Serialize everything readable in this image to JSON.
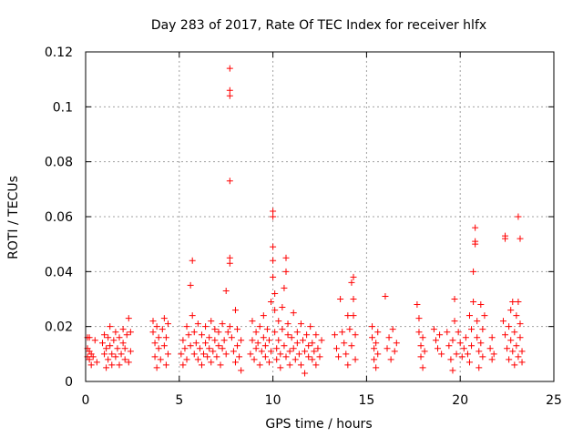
{
  "chart_data": {
    "type": "scatter",
    "title": "Day 283 of 2017, Rate Of TEC Index for receiver hlfx",
    "xlabel": "GPS time / hours",
    "ylabel": "ROTI / TECUs",
    "xlim": [
      0,
      25
    ],
    "ylim": [
      0,
      0.12
    ],
    "xticks": [
      0,
      5,
      10,
      15,
      20,
      25
    ],
    "yticks": [
      0,
      0.02,
      0.04,
      0.06,
      0.08,
      0.1,
      0.12
    ],
    "xtick_labels": [
      "0",
      "5",
      "10",
      "15",
      "20",
      "25"
    ],
    "ytick_labels": [
      "0",
      "0.02",
      "0.04",
      "0.06",
      "0.08",
      "0.1",
      "0.12"
    ],
    "grid": true,
    "marker": "+",
    "color": "#ff0000",
    "series": [
      {
        "points": [
          [
            0.1,
            0.016
          ],
          [
            0.1,
            0.012
          ],
          [
            0.1,
            0.009
          ],
          [
            0.2,
            0.008
          ],
          [
            0.2,
            0.011
          ],
          [
            0.2,
            0.016
          ],
          [
            0.3,
            0.006
          ],
          [
            0.3,
            0.01
          ],
          [
            0.4,
            0.009
          ],
          [
            0.5,
            0.015
          ],
          [
            0.6,
            0.007
          ],
          [
            0.9,
            0.014
          ],
          [
            1.0,
            0.017
          ],
          [
            1.0,
            0.01
          ],
          [
            1.1,
            0.005
          ],
          [
            1.1,
            0.012
          ],
          [
            1.2,
            0.016
          ],
          [
            1.2,
            0.008
          ],
          [
            1.3,
            0.013
          ],
          [
            1.3,
            0.02
          ],
          [
            1.4,
            0.01
          ],
          [
            1.4,
            0.006
          ],
          [
            1.5,
            0.015
          ],
          [
            1.6,
            0.009
          ],
          [
            1.6,
            0.018
          ],
          [
            1.7,
            0.012
          ],
          [
            1.8,
            0.006
          ],
          [
            1.8,
            0.016
          ],
          [
            1.9,
            0.01
          ],
          [
            2.0,
            0.014
          ],
          [
            2.0,
            0.019
          ],
          [
            2.1,
            0.008
          ],
          [
            2.1,
            0.012
          ],
          [
            2.2,
            0.017
          ],
          [
            2.3,
            0.007
          ],
          [
            2.3,
            0.023
          ],
          [
            2.4,
            0.011
          ],
          [
            2.4,
            0.018
          ],
          [
            3.6,
            0.022
          ],
          [
            3.6,
            0.018
          ],
          [
            3.7,
            0.014
          ],
          [
            3.7,
            0.009
          ],
          [
            3.8,
            0.005
          ],
          [
            3.8,
            0.02
          ],
          [
            3.9,
            0.012
          ],
          [
            3.9,
            0.016
          ],
          [
            4.0,
            0.008
          ],
          [
            4.1,
            0.019
          ],
          [
            4.2,
            0.023
          ],
          [
            4.2,
            0.013
          ],
          [
            4.3,
            0.006
          ],
          [
            4.3,
            0.016
          ],
          [
            4.4,
            0.01
          ],
          [
            4.4,
            0.021
          ],
          [
            5.1,
            0.01
          ],
          [
            5.2,
            0.015
          ],
          [
            5.2,
            0.006
          ],
          [
            5.3,
            0.012
          ],
          [
            5.4,
            0.02
          ],
          [
            5.4,
            0.008
          ],
          [
            5.5,
            0.017
          ],
          [
            5.6,
            0.013
          ],
          [
            5.6,
            0.035
          ],
          [
            5.7,
            0.044
          ],
          [
            5.7,
            0.024
          ],
          [
            5.8,
            0.01
          ],
          [
            5.8,
            0.018
          ],
          [
            5.9,
            0.014
          ],
          [
            6.0,
            0.008
          ],
          [
            6.0,
            0.021
          ],
          [
            6.1,
            0.012
          ],
          [
            6.2,
            0.017
          ],
          [
            6.2,
            0.006
          ],
          [
            6.3,
            0.01
          ],
          [
            6.4,
            0.02
          ],
          [
            6.4,
            0.014
          ],
          [
            6.5,
            0.009
          ],
          [
            6.6,
            0.016
          ],
          [
            6.6,
            0.012
          ],
          [
            6.7,
            0.007
          ],
          [
            6.7,
            0.022
          ],
          [
            6.8,
            0.011
          ],
          [
            6.9,
            0.015
          ],
          [
            6.9,
            0.019
          ],
          [
            7.0,
            0.009
          ],
          [
            7.1,
            0.013
          ],
          [
            7.1,
            0.018
          ],
          [
            7.2,
            0.006
          ],
          [
            7.3,
            0.012
          ],
          [
            7.3,
            0.021
          ],
          [
            7.4,
            0.015
          ],
          [
            7.5,
            0.01
          ],
          [
            7.5,
            0.033
          ],
          [
            7.6,
            0.018
          ],
          [
            7.7,
            0.114
          ],
          [
            7.7,
            0.106
          ],
          [
            7.7,
            0.104
          ],
          [
            7.7,
            0.073
          ],
          [
            7.7,
            0.045
          ],
          [
            7.7,
            0.043
          ],
          [
            7.7,
            0.02
          ],
          [
            7.8,
            0.016
          ],
          [
            7.9,
            0.011
          ],
          [
            8.0,
            0.026
          ],
          [
            8.0,
            0.007
          ],
          [
            8.1,
            0.013
          ],
          [
            8.1,
            0.019
          ],
          [
            8.2,
            0.009
          ],
          [
            8.3,
            0.015
          ],
          [
            8.3,
            0.004
          ],
          [
            8.8,
            0.01
          ],
          [
            8.9,
            0.015
          ],
          [
            8.9,
            0.022
          ],
          [
            9.0,
            0.008
          ],
          [
            9.1,
            0.012
          ],
          [
            9.1,
            0.018
          ],
          [
            9.2,
            0.014
          ],
          [
            9.3,
            0.006
          ],
          [
            9.3,
            0.02
          ],
          [
            9.4,
            0.011
          ],
          [
            9.5,
            0.016
          ],
          [
            9.5,
            0.024
          ],
          [
            9.6,
            0.009
          ],
          [
            9.6,
            0.013
          ],
          [
            9.7,
            0.019
          ],
          [
            9.8,
            0.007
          ],
          [
            9.8,
            0.015
          ],
          [
            9.9,
            0.011
          ],
          [
            9.9,
            0.029
          ],
          [
            10.0,
            0.062
          ],
          [
            10.0,
            0.06
          ],
          [
            10.0,
            0.049
          ],
          [
            10.0,
            0.044
          ],
          [
            10.0,
            0.038
          ],
          [
            10.1,
            0.032
          ],
          [
            10.1,
            0.026
          ],
          [
            10.1,
            0.018
          ],
          [
            10.2,
            0.012
          ],
          [
            10.2,
            0.008
          ],
          [
            10.3,
            0.022
          ],
          [
            10.3,
            0.015
          ],
          [
            10.4,
            0.01
          ],
          [
            10.4,
            0.005
          ],
          [
            10.5,
            0.019
          ],
          [
            10.5,
            0.027
          ],
          [
            10.6,
            0.013
          ],
          [
            10.6,
            0.034
          ],
          [
            10.7,
            0.009
          ],
          [
            10.7,
            0.045
          ],
          [
            10.7,
            0.04
          ],
          [
            10.8,
            0.017
          ],
          [
            10.8,
            0.021
          ],
          [
            10.9,
            0.011
          ],
          [
            10.9,
            0.006
          ],
          [
            11.0,
            0.016
          ],
          [
            11.1,
            0.025
          ],
          [
            11.1,
            0.012
          ],
          [
            11.2,
            0.008
          ],
          [
            11.3,
            0.018
          ],
          [
            11.3,
            0.014
          ],
          [
            11.4,
            0.01
          ],
          [
            11.5,
            0.021
          ],
          [
            11.5,
            0.006
          ],
          [
            11.6,
            0.015
          ],
          [
            11.7,
            0.011
          ],
          [
            11.7,
            0.003
          ],
          [
            11.8,
            0.017
          ],
          [
            11.9,
            0.009
          ],
          [
            11.9,
            0.013
          ],
          [
            12.0,
            0.02
          ],
          [
            12.1,
            0.008
          ],
          [
            12.1,
            0.014
          ],
          [
            12.2,
            0.011
          ],
          [
            12.3,
            0.017
          ],
          [
            12.3,
            0.006
          ],
          [
            12.4,
            0.012
          ],
          [
            12.5,
            0.009
          ],
          [
            12.6,
            0.015
          ],
          [
            13.3,
            0.017
          ],
          [
            13.4,
            0.012
          ],
          [
            13.5,
            0.009
          ],
          [
            13.6,
            0.03
          ],
          [
            13.7,
            0.018
          ],
          [
            13.8,
            0.014
          ],
          [
            13.9,
            0.01
          ],
          [
            14.0,
            0.006
          ],
          [
            14.0,
            0.024
          ],
          [
            14.1,
            0.019
          ],
          [
            14.2,
            0.013
          ],
          [
            14.2,
            0.036
          ],
          [
            14.3,
            0.038
          ],
          [
            14.3,
            0.03
          ],
          [
            14.3,
            0.024
          ],
          [
            14.4,
            0.017
          ],
          [
            14.4,
            0.008
          ],
          [
            15.3,
            0.02
          ],
          [
            15.3,
            0.016
          ],
          [
            15.4,
            0.012
          ],
          [
            15.4,
            0.008
          ],
          [
            15.5,
            0.005
          ],
          [
            15.5,
            0.014
          ],
          [
            15.6,
            0.018
          ],
          [
            15.6,
            0.01
          ],
          [
            16.0,
            0.031
          ],
          [
            16.1,
            0.012
          ],
          [
            16.2,
            0.016
          ],
          [
            16.3,
            0.008
          ],
          [
            16.4,
            0.019
          ],
          [
            16.5,
            0.011
          ],
          [
            16.6,
            0.014
          ],
          [
            17.7,
            0.028
          ],
          [
            17.8,
            0.023
          ],
          [
            17.8,
            0.018
          ],
          [
            17.9,
            0.013
          ],
          [
            17.9,
            0.009
          ],
          [
            18.0,
            0.005
          ],
          [
            18.0,
            0.016
          ],
          [
            18.1,
            0.011
          ],
          [
            18.6,
            0.019
          ],
          [
            18.7,
            0.015
          ],
          [
            18.8,
            0.012
          ],
          [
            18.9,
            0.017
          ],
          [
            19.0,
            0.01
          ],
          [
            19.3,
            0.018
          ],
          [
            19.4,
            0.013
          ],
          [
            19.5,
            0.008
          ],
          [
            19.6,
            0.004
          ],
          [
            19.6,
            0.015
          ],
          [
            19.7,
            0.03
          ],
          [
            19.7,
            0.022
          ],
          [
            19.8,
            0.01
          ],
          [
            19.9,
            0.018
          ],
          [
            20.0,
            0.014
          ],
          [
            20.1,
            0.009
          ],
          [
            20.2,
            0.012
          ],
          [
            20.3,
            0.016
          ],
          [
            20.4,
            0.01
          ],
          [
            20.5,
            0.024
          ],
          [
            20.5,
            0.007
          ],
          [
            20.6,
            0.013
          ],
          [
            20.6,
            0.019
          ],
          [
            20.7,
            0.04
          ],
          [
            20.7,
            0.029
          ],
          [
            20.8,
            0.056
          ],
          [
            20.8,
            0.051
          ],
          [
            20.8,
            0.05
          ],
          [
            20.9,
            0.022
          ],
          [
            20.9,
            0.016
          ],
          [
            21.0,
            0.011
          ],
          [
            21.0,
            0.005
          ],
          [
            21.1,
            0.028
          ],
          [
            21.1,
            0.014
          ],
          [
            21.2,
            0.019
          ],
          [
            21.2,
            0.009
          ],
          [
            21.3,
            0.024
          ],
          [
            21.6,
            0.012
          ],
          [
            21.7,
            0.008
          ],
          [
            21.7,
            0.016
          ],
          [
            21.8,
            0.01
          ],
          [
            22.3,
            0.022
          ],
          [
            22.4,
            0.053
          ],
          [
            22.4,
            0.052
          ],
          [
            22.4,
            0.017
          ],
          [
            22.5,
            0.012
          ],
          [
            22.6,
            0.008
          ],
          [
            22.6,
            0.02
          ],
          [
            22.7,
            0.015
          ],
          [
            22.7,
            0.026
          ],
          [
            22.8,
            0.011
          ],
          [
            22.8,
            0.029
          ],
          [
            22.9,
            0.018
          ],
          [
            22.9,
            0.006
          ],
          [
            23.0,
            0.024
          ],
          [
            23.0,
            0.013
          ],
          [
            23.1,
            0.009
          ],
          [
            23.1,
            0.06
          ],
          [
            23.1,
            0.029
          ],
          [
            23.2,
            0.052
          ],
          [
            23.2,
            0.016
          ],
          [
            23.2,
            0.021
          ],
          [
            23.3,
            0.011
          ],
          [
            23.3,
            0.007
          ]
        ]
      }
    ]
  }
}
